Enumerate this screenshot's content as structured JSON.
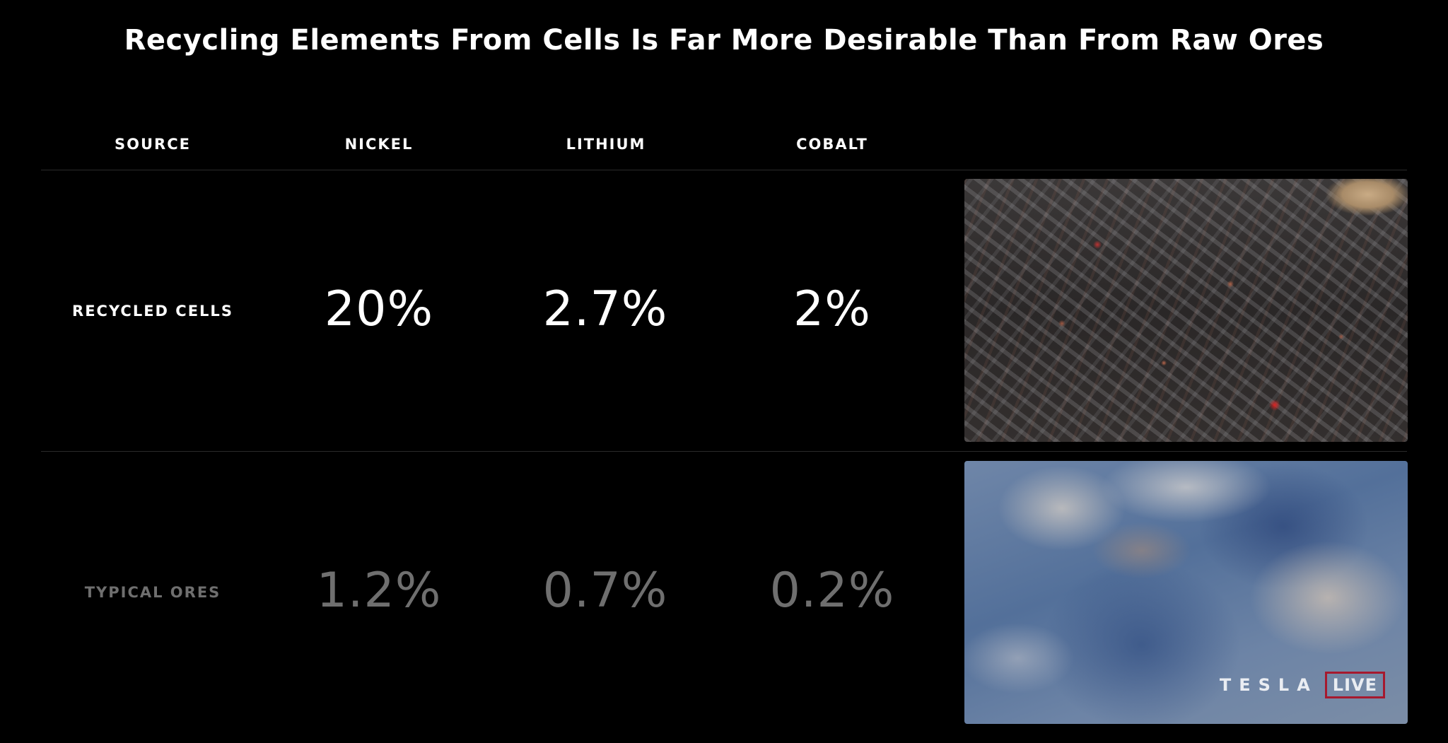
{
  "slide": {
    "title": "Recycling Elements From Cells Is Far More Desirable Than From Raw Ores"
  },
  "table": {
    "headers": [
      "SOURCE",
      "NICKEL",
      "LITHIUM",
      "COBALT"
    ],
    "rows": [
      {
        "label": "RECYCLED CELLS",
        "values": [
          "20%",
          "2.7%",
          "2%"
        ],
        "image": "shredded-battery-cells-photo"
      },
      {
        "label": "TYPICAL ORES",
        "values": [
          "1.2%",
          "0.7%",
          "0.2%"
        ],
        "image": "raw-ore-rock-photo"
      }
    ]
  },
  "watermark": {
    "brand": "TESLA",
    "badge": "LIVE"
  },
  "colors": {
    "background": "#000000",
    "primary_text": "#ffffff",
    "muted_text": "#6f6f6f",
    "live_badge": "#a6192e"
  }
}
